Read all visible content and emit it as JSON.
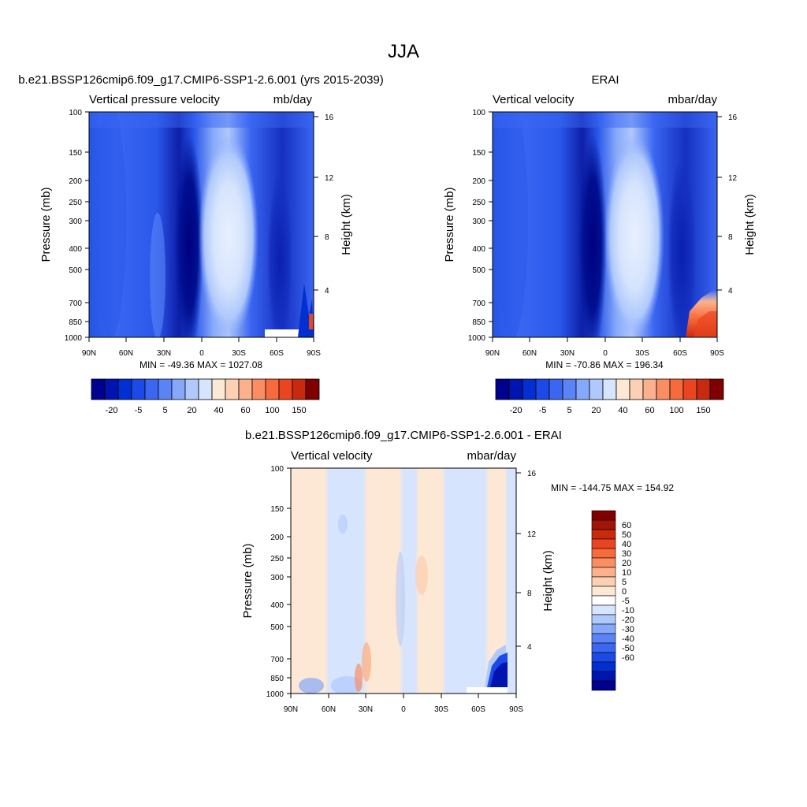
{
  "figure_title": "JJA",
  "colors": {
    "blues": [
      "#00008f",
      "#0015b0",
      "#0030d2",
      "#1c4ae8",
      "#3a66f2",
      "#5a84f6",
      "#85a8fa",
      "#b0c9fc",
      "#d6e4fd",
      "#e8f0fe"
    ],
    "reds": [
      "#fde8d6",
      "#fcd0b4",
      "#fbb28c",
      "#fa8e62",
      "#f66a3c",
      "#ea4520",
      "#c92a0e",
      "#a01505",
      "#800000"
    ],
    "frame": "#000000"
  },
  "icons": [],
  "chart_data": [
    {
      "type": "heatmap",
      "title": "b.e21.BSSP126cmip6.f09_g17.CMIP6-SSP1-2.6.001 (yrs 2015-2039)",
      "left_label": "Vertical pressure velocity",
      "right_label": "mb/day",
      "ylabel": "Pressure (mb)",
      "ylabel_right": "Height (km)",
      "x": [
        "90N",
        "60N",
        "30N",
        "0",
        "30S",
        "60S",
        "90S"
      ],
      "y": [
        "100",
        "150",
        "200",
        "250",
        "300",
        "400",
        "500",
        "700",
        "850",
        "1000"
      ],
      "y_right": [
        "16",
        "12",
        "8",
        "4"
      ],
      "ylim": [
        1000,
        100
      ],
      "stats": "MIN = -49.36  MAX = 1027.08",
      "colorbar_labels": [
        "-20",
        "-5",
        "5",
        "20",
        "40",
        "60",
        "100",
        "150"
      ],
      "field": "upward motion (negative) centered near 10N and 70S; weakest values near 20S; positive only near the surface at 80-90S"
    },
    {
      "type": "heatmap",
      "title": "ERAI",
      "left_label": "Vertical velocity",
      "right_label": "mbar/day",
      "ylabel": "Pressure (mb)",
      "ylabel_right": "Height (km)",
      "x": [
        "90N",
        "60N",
        "30N",
        "0",
        "30S",
        "60S",
        "90S"
      ],
      "y": [
        "100",
        "150",
        "200",
        "250",
        "300",
        "400",
        "500",
        "700",
        "850",
        "1000"
      ],
      "y_right": [
        "16",
        "12",
        "8",
        "4"
      ],
      "ylim": [
        1000,
        100
      ],
      "stats": "MIN = -70.86  MAX = 196.34",
      "colorbar_labels": [
        "-20",
        "-5",
        "5",
        "20",
        "40",
        "60",
        "100",
        "150"
      ],
      "field": "strongest upward motion near 10N; weak motion near 20S; positive values below 700 mb south of 70S"
    },
    {
      "type": "heatmap",
      "title": "b.e21.BSSP126cmip6.f09_g17.CMIP6-SSP1-2.6.001 - ERAI",
      "left_label": "Vertical velocity",
      "right_label": "mbar/day",
      "ylabel": "Pressure (mb)",
      "ylabel_right": "Height (km)",
      "x": [
        "90N",
        "60N",
        "30N",
        "0",
        "30S",
        "60S",
        "90S"
      ],
      "y": [
        "100",
        "150",
        "200",
        "250",
        "300",
        "400",
        "500",
        "700",
        "850",
        "1000"
      ],
      "y_right": [
        "16",
        "12",
        "8",
        "4"
      ],
      "ylim": [
        1000,
        100
      ],
      "stats": "MIN = -144.75  MAX = 154.92",
      "colorbar_labels": [
        "60",
        "50",
        "40",
        "30",
        "20",
        "10",
        "5",
        "0",
        "-5",
        "-10",
        "-20",
        "-30",
        "-40",
        "-50",
        "-60"
      ],
      "field": "differences mostly within -5..5; strong negative values below 700 mb near 70-80S"
    }
  ]
}
